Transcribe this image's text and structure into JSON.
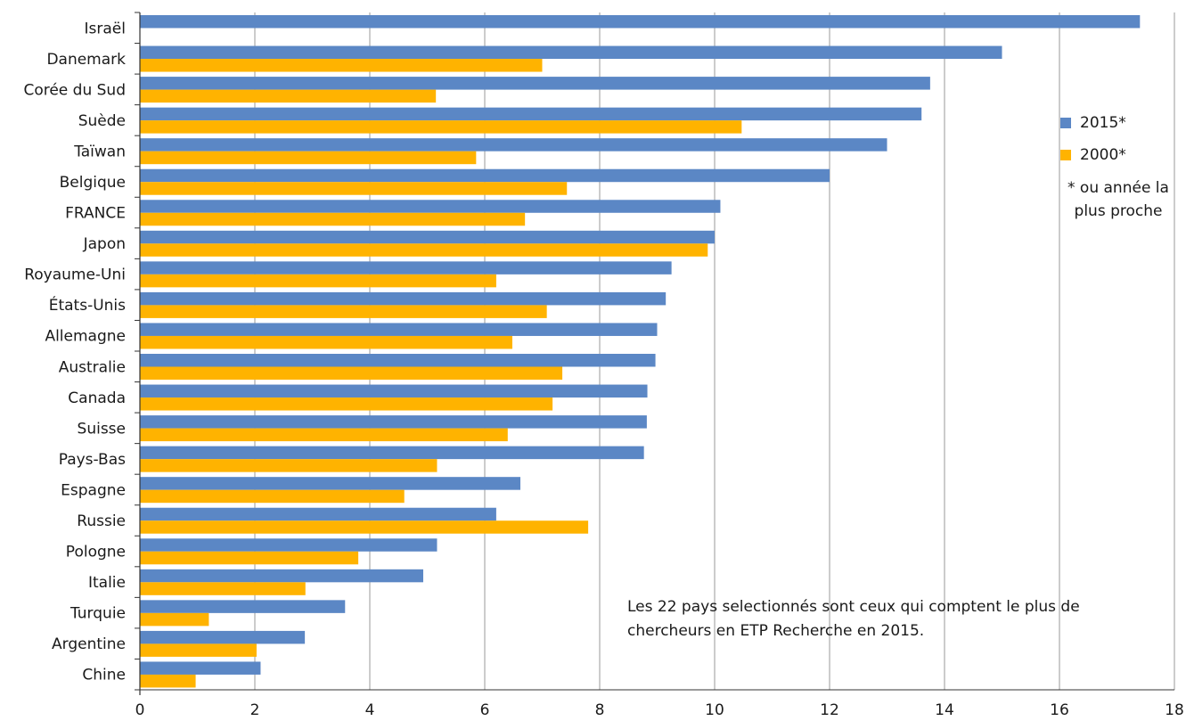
{
  "chart_data": {
    "type": "bar",
    "orientation": "horizontal",
    "categories": [
      "Israël",
      "Danemark",
      "Corée du Sud",
      "Suède",
      "Taïwan",
      "Belgique",
      "FRANCE",
      "Japon",
      "Royaume-Uni",
      "États-Unis",
      "Allemagne",
      "Australie",
      "Canada",
      "Suisse",
      "Pays-Bas",
      "Espagne",
      "Russie",
      "Pologne",
      "Italie",
      "Turquie",
      "Argentine",
      "Chine"
    ],
    "series": [
      {
        "name": "2015*",
        "color": "#5b87c5",
        "values": [
          17.4,
          15.0,
          13.75,
          13.6,
          13.0,
          12.0,
          10.1,
          10.0,
          9.25,
          9.15,
          9.0,
          8.97,
          8.83,
          8.82,
          8.77,
          6.62,
          6.2,
          5.17,
          4.93,
          3.57,
          2.87,
          2.1
        ]
      },
      {
        "name": "2000*",
        "color": "#ffb300",
        "values": [
          null,
          7.0,
          5.15,
          10.47,
          5.85,
          7.43,
          6.7,
          9.88,
          6.2,
          7.08,
          6.48,
          7.35,
          7.18,
          6.4,
          5.17,
          4.6,
          7.8,
          3.8,
          2.88,
          1.2,
          2.03,
          0.97
        ]
      }
    ],
    "xlim": [
      0,
      18
    ],
    "xticks": [
      "0",
      "2",
      "4",
      "6",
      "8",
      "10",
      "12",
      "14",
      "16",
      "18"
    ],
    "grid": "vertical",
    "legend_position": "right",
    "legend_note": "* ou année la plus proche",
    "annotation": "Les 22 pays selectionnés sont ceux qui comptent le plus de chercheurs en ETP Recherche en 2015."
  }
}
